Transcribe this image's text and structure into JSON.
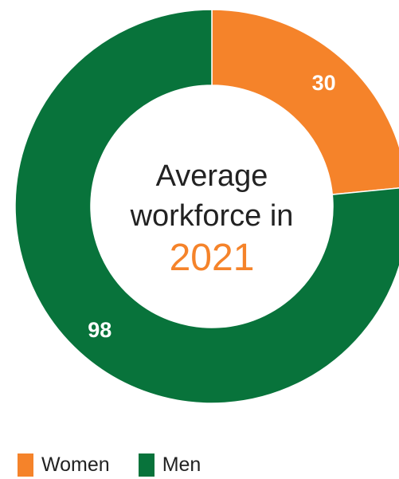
{
  "chart_data": {
    "type": "pie",
    "categories": [
      "Women",
      "Men"
    ],
    "values": [
      30,
      98
    ],
    "colors": [
      "#f5832a",
      "#08733b"
    ],
    "data_label_color": "#ffffff",
    "center_text": {
      "line1": "Average",
      "line2": "workforce in",
      "year": "2021"
    },
    "legend": {
      "placement": "bottom-left",
      "entries": [
        {
          "label": "Women",
          "color": "#f5832a"
        },
        {
          "label": "Men",
          "color": "#08733b"
        }
      ]
    }
  }
}
